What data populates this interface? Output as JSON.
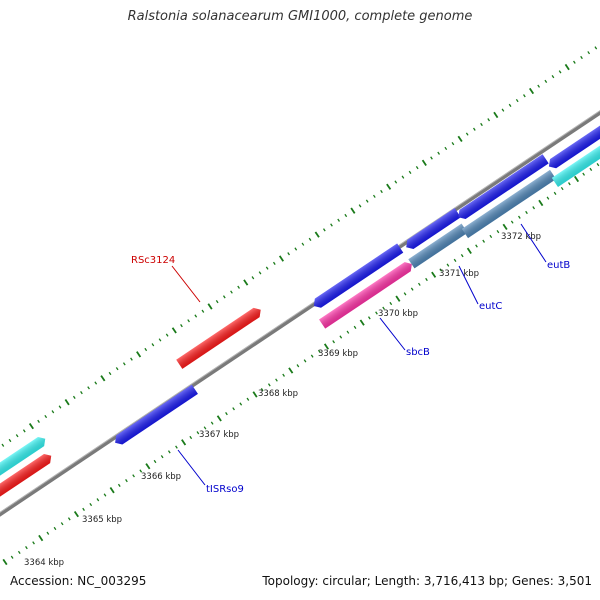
{
  "header": {
    "title": "Ralstonia solanacearum GMI1000, complete genome"
  },
  "footer": {
    "accession": "Accession: NC_003295",
    "summary": "Topology: circular; Length: 3,716,413 bp; Genes: 3,501"
  },
  "colors": {
    "backbone": "#7f7f7f",
    "tick": "#1a7a1a",
    "forward_gene": "#ff1a1a",
    "reverse_gene": "#1a1af2",
    "forward_cds_alt": "#33f2f2",
    "misc_feature": "#ff33a8",
    "operon": "#4f86b8",
    "label_red": "#cc0000",
    "label_blue": "#0000cc"
  },
  "scale_labels": [
    "3364 kbp",
    "3365 kbp",
    "3366 kbp",
    "3367 kbp",
    "3368 kbp",
    "3369 kbp",
    "3370 kbp",
    "3371 kbp",
    "3372 kbp"
  ],
  "gene_labels": [
    {
      "name": "RSc3124",
      "color": "label_red"
    },
    {
      "name": "tISRso9",
      "color": "label_blue"
    },
    {
      "name": "sbcB",
      "color": "label_blue"
    },
    {
      "name": "eutC",
      "color": "label_blue"
    },
    {
      "name": "eutB",
      "color": "label_blue"
    }
  ]
}
